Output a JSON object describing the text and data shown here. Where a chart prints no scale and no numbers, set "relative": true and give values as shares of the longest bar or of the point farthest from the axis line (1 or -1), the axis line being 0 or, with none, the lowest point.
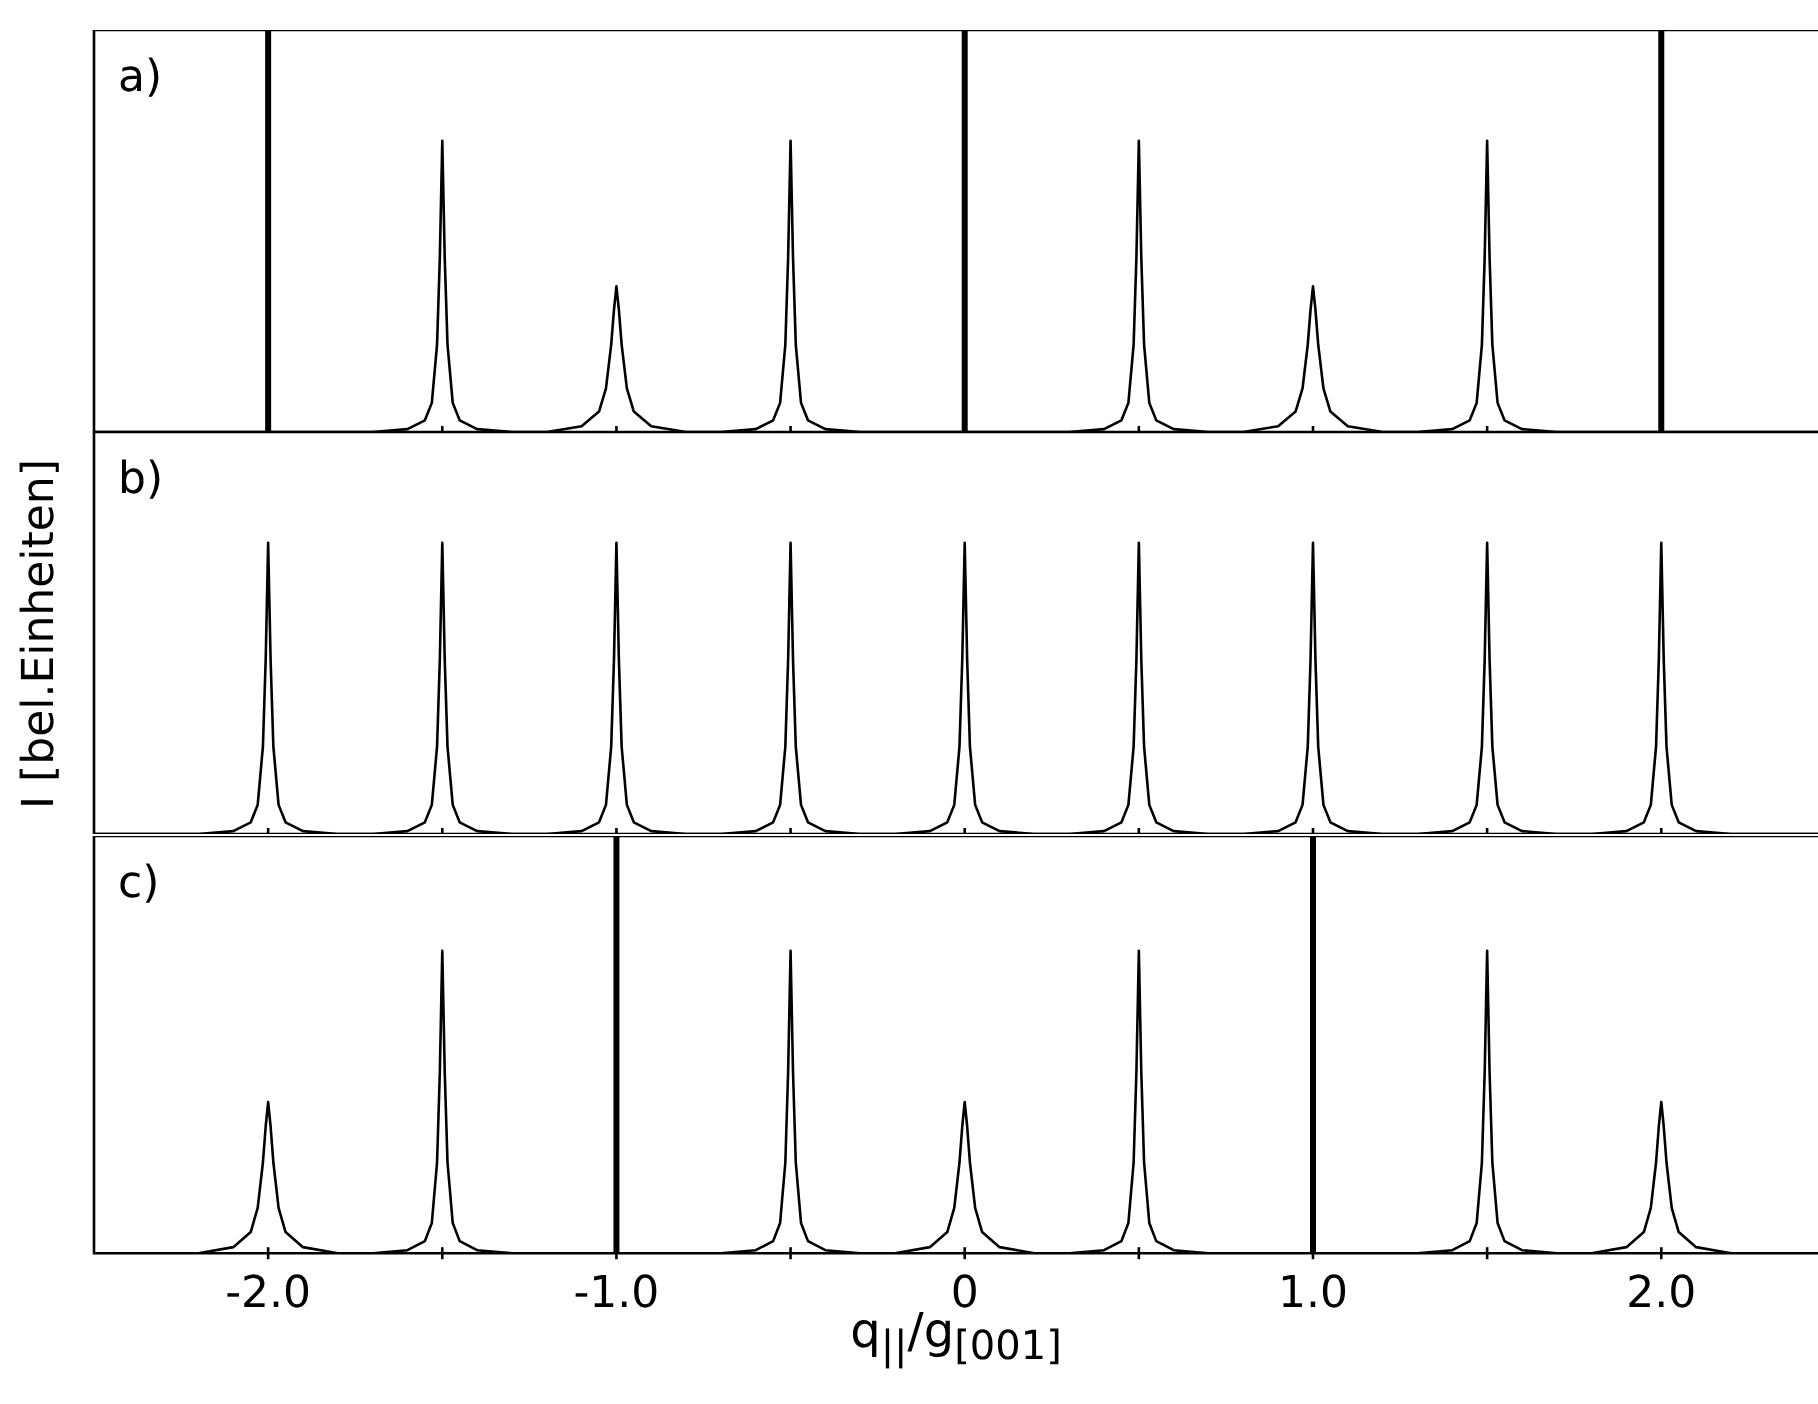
{
  "chart_data": [
    {
      "type": "line",
      "title": "a)",
      "relative": true,
      "xlim": [
        -2.5,
        2.45
      ],
      "xticks": [
        {
          "value": -2,
          "label": null
        },
        {
          "value": -1.5,
          "label": null
        },
        {
          "value": -1,
          "label": null
        },
        {
          "value": -0.5,
          "label": null
        },
        {
          "value": 0,
          "label": null
        },
        {
          "value": 0.5,
          "label": null
        },
        {
          "value": 1,
          "label": null
        },
        {
          "value": 1.5,
          "label": null
        },
        {
          "value": 2,
          "label": null
        }
      ],
      "tick_labels": false,
      "legend": false,
      "marker": "none",
      "series": [
        {
          "color": "#000000",
          "x": [
            -2.5,
            -1.7,
            -1.6,
            -1.55,
            -1.53,
            -1.515,
            -1.507,
            -1.5,
            -1.493,
            -1.485,
            -1.47,
            -1.45,
            -1.4,
            -1.3,
            -1.2,
            -1.1,
            -1.05,
            -1.03,
            -1.015,
            -1.007,
            -1,
            -0.993,
            -0.985,
            -0.97,
            -0.95,
            -0.9,
            -0.8,
            -0.7,
            -0.6,
            -0.55,
            -0.53,
            -0.515,
            -0.507,
            -0.5,
            -0.493,
            -0.485,
            -0.47,
            -0.45,
            -0.4,
            -0.3,
            0.3,
            0.4,
            0.45,
            0.47,
            0.485,
            0.493,
            0.5,
            0.507,
            0.515,
            0.53,
            0.55,
            0.6,
            0.7,
            0.8,
            0.9,
            0.95,
            0.97,
            0.985,
            0.993,
            1,
            1.007,
            1.015,
            1.03,
            1.05,
            1.1,
            1.2,
            1.3,
            1.4,
            1.45,
            1.47,
            1.485,
            1.493,
            1.5,
            1.507,
            1.515,
            1.53,
            1.55,
            1.6,
            1.7,
            2.45
          ],
          "values": [
            0,
            0,
            0.01,
            0.04,
            0.1,
            0.3,
            0.6,
            1,
            0.6,
            0.3,
            0.1,
            0.04,
            0.01,
            0,
            0,
            0.02,
            0.07,
            0.15,
            0.3,
            0.42,
            0.5,
            0.42,
            0.3,
            0.15,
            0.07,
            0.02,
            0,
            0,
            0.01,
            0.04,
            0.1,
            0.3,
            0.6,
            1,
            0.6,
            0.3,
            0.1,
            0.04,
            0.01,
            0,
            0,
            0.01,
            0.04,
            0.1,
            0.3,
            0.6,
            1,
            0.6,
            0.3,
            0.1,
            0.04,
            0.01,
            0,
            0,
            0.02,
            0.07,
            0.15,
            0.3,
            0.42,
            0.5,
            0.42,
            0.3,
            0.15,
            0.07,
            0.02,
            0,
            0,
            0.01,
            0.04,
            0.1,
            0.3,
            0.6,
            1,
            0.6,
            0.3,
            0.1,
            0.04,
            0.01,
            0,
            0
          ]
        }
      ],
      "ref_lines": [
        {
          "axis": "x",
          "value": -2,
          "color": "#000000"
        },
        {
          "axis": "x",
          "value": 0,
          "color": "#000000"
        },
        {
          "axis": "x",
          "value": 2,
          "color": "#000000"
        }
      ]
    },
    {
      "type": "line",
      "title": "b)",
      "ylabel": "I [bel.Einheiten]",
      "relative": true,
      "xlim": [
        -2.5,
        2.45
      ],
      "xticks": [
        {
          "value": -2,
          "label": null
        },
        {
          "value": -1.5,
          "label": null
        },
        {
          "value": -1,
          "label": null
        },
        {
          "value": -0.5,
          "label": null
        },
        {
          "value": 0,
          "label": null
        },
        {
          "value": 0.5,
          "label": null
        },
        {
          "value": 1,
          "label": null
        },
        {
          "value": 1.5,
          "label": null
        },
        {
          "value": 2,
          "label": null
        }
      ],
      "tick_labels": false,
      "legend": false,
      "marker": "none",
      "series": [
        {
          "color": "#000000",
          "x": [
            -2.5,
            -2.2,
            -2.1,
            -2.05,
            -2.03,
            -2.015,
            -2.007,
            -2,
            -1.993,
            -1.985,
            -1.97,
            -1.95,
            -1.9,
            -1.8,
            -1.7,
            -1.6,
            -1.55,
            -1.53,
            -1.515,
            -1.507,
            -1.5,
            -1.493,
            -1.485,
            -1.47,
            -1.45,
            -1.4,
            -1.3,
            -1.2,
            -1.1,
            -1.05,
            -1.03,
            -1.015,
            -1.007,
            -1,
            -0.993,
            -0.985,
            -0.97,
            -0.95,
            -0.9,
            -0.8,
            -0.7,
            -0.6,
            -0.55,
            -0.53,
            -0.515,
            -0.507,
            -0.5,
            -0.493,
            -0.485,
            -0.47,
            -0.45,
            -0.4,
            -0.3,
            -0.2,
            -0.1,
            -0.05,
            -0.03,
            -0.015,
            -0.007,
            0,
            0.007,
            0.015,
            0.03,
            0.05,
            0.1,
            0.2,
            0.3,
            0.4,
            0.45,
            0.47,
            0.485,
            0.493,
            0.5,
            0.507,
            0.515,
            0.53,
            0.55,
            0.6,
            0.7,
            0.8,
            0.9,
            0.95,
            0.97,
            0.985,
            0.993,
            1,
            1.007,
            1.015,
            1.03,
            1.05,
            1.1,
            1.2,
            1.3,
            1.4,
            1.45,
            1.47,
            1.485,
            1.493,
            1.5,
            1.507,
            1.515,
            1.53,
            1.55,
            1.6,
            1.7,
            1.8,
            1.9,
            1.95,
            1.97,
            1.985,
            1.993,
            2,
            2.007,
            2.015,
            2.03,
            2.05,
            2.1,
            2.2,
            2.45
          ],
          "values": [
            0,
            0,
            0.01,
            0.04,
            0.1,
            0.3,
            0.6,
            1,
            0.6,
            0.3,
            0.1,
            0.04,
            0.01,
            0,
            0,
            0.01,
            0.04,
            0.1,
            0.3,
            0.6,
            1,
            0.6,
            0.3,
            0.1,
            0.04,
            0.01,
            0,
            0,
            0.01,
            0.04,
            0.1,
            0.3,
            0.6,
            1,
            0.6,
            0.3,
            0.1,
            0.04,
            0.01,
            0,
            0,
            0.01,
            0.04,
            0.1,
            0.3,
            0.6,
            1,
            0.6,
            0.3,
            0.1,
            0.04,
            0.01,
            0,
            0,
            0.01,
            0.04,
            0.1,
            0.3,
            0.6,
            1,
            0.6,
            0.3,
            0.1,
            0.04,
            0.01,
            0,
            0,
            0.01,
            0.04,
            0.1,
            0.3,
            0.6,
            1,
            0.6,
            0.3,
            0.1,
            0.04,
            0.01,
            0,
            0,
            0.01,
            0.04,
            0.1,
            0.3,
            0.6,
            1,
            0.6,
            0.3,
            0.1,
            0.04,
            0.01,
            0,
            0,
            0.01,
            0.04,
            0.1,
            0.3,
            0.6,
            1,
            0.6,
            0.3,
            0.1,
            0.04,
            0.01,
            0,
            0,
            0.01,
            0.04,
            0.1,
            0.3,
            0.6,
            1,
            0.6,
            0.3,
            0.1,
            0.04,
            0.01,
            0,
            0
          ]
        }
      ]
    },
    {
      "type": "line",
      "title": "c)",
      "xlabel": "q$_{||}$/g$_{[001]}$",
      "relative": true,
      "xlim": [
        -2.5,
        2.45
      ],
      "xticks": [
        {
          "value": -2,
          "label": "-2.0"
        },
        {
          "value": -1.5,
          "label": null
        },
        {
          "value": -1,
          "label": "-1.0"
        },
        {
          "value": -0.5,
          "label": null
        },
        0,
        {
          "value": 0.5,
          "label": null
        },
        {
          "value": 1,
          "label": "1.0"
        },
        {
          "value": 1.5,
          "label": null
        },
        {
          "value": 2,
          "label": "2.0"
        }
      ],
      "tick_labels": "x",
      "legend": false,
      "marker": "none",
      "series": [
        {
          "color": "#000000",
          "x": [
            -2.5,
            -2.2,
            -2.1,
            -2.05,
            -2.03,
            -2.015,
            -2.007,
            -2,
            -1.993,
            -1.985,
            -1.97,
            -1.95,
            -1.9,
            -1.8,
            -1.7,
            -1.6,
            -1.55,
            -1.53,
            -1.515,
            -1.507,
            -1.5,
            -1.493,
            -1.485,
            -1.47,
            -1.45,
            -1.4,
            -1.3,
            -0.7,
            -0.6,
            -0.55,
            -0.53,
            -0.515,
            -0.507,
            -0.5,
            -0.493,
            -0.485,
            -0.47,
            -0.45,
            -0.4,
            -0.3,
            -0.2,
            -0.1,
            -0.05,
            -0.03,
            -0.015,
            -0.007,
            0,
            0.007,
            0.015,
            0.03,
            0.05,
            0.1,
            0.2,
            0.3,
            0.4,
            0.45,
            0.47,
            0.485,
            0.493,
            0.5,
            0.507,
            0.515,
            0.53,
            0.55,
            0.6,
            0.7,
            1.3,
            1.4,
            1.45,
            1.47,
            1.485,
            1.493,
            1.5,
            1.507,
            1.515,
            1.53,
            1.55,
            1.6,
            1.7,
            1.8,
            1.9,
            1.95,
            1.97,
            1.985,
            1.993,
            2,
            2.007,
            2.015,
            2.03,
            2.05,
            2.1,
            2.2,
            2.45
          ],
          "values": [
            0,
            0,
            0.02,
            0.07,
            0.15,
            0.3,
            0.42,
            0.5,
            0.42,
            0.3,
            0.15,
            0.07,
            0.02,
            0,
            0,
            0.01,
            0.04,
            0.1,
            0.3,
            0.6,
            1,
            0.6,
            0.3,
            0.1,
            0.04,
            0.01,
            0,
            0,
            0.01,
            0.04,
            0.1,
            0.3,
            0.6,
            1,
            0.6,
            0.3,
            0.1,
            0.04,
            0.01,
            0,
            0,
            0.02,
            0.07,
            0.15,
            0.3,
            0.42,
            0.5,
            0.42,
            0.3,
            0.15,
            0.07,
            0.02,
            0,
            0,
            0.01,
            0.04,
            0.1,
            0.3,
            0.6,
            1,
            0.6,
            0.3,
            0.1,
            0.04,
            0.01,
            0,
            0,
            0.01,
            0.04,
            0.1,
            0.3,
            0.6,
            1,
            0.6,
            0.3,
            0.1,
            0.04,
            0.01,
            0,
            0,
            0.02,
            0.07,
            0.15,
            0.3,
            0.42,
            0.5,
            0.42,
            0.3,
            0.15,
            0.07,
            0.02,
            0,
            0
          ]
        }
      ],
      "ref_lines": [
        {
          "axis": "x",
          "value": -1,
          "color": "#000000"
        },
        {
          "axis": "x",
          "value": 1,
          "color": "#000000"
        }
      ]
    }
  ]
}
